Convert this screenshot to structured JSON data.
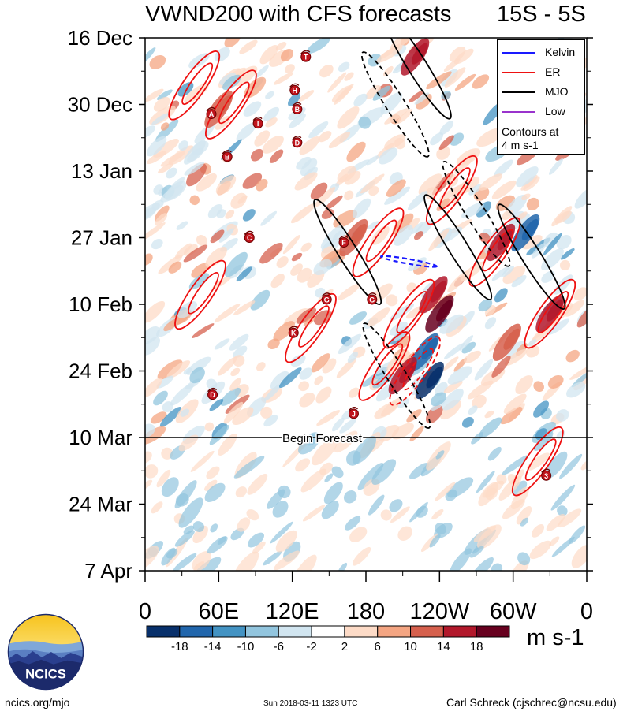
{
  "chart_data": {
    "type": "heatmap",
    "title": "VWND200 with CFS forecasts",
    "lat_band": "15S - 5S",
    "x_ticks": [
      {
        "lon": 0,
        "label": "0"
      },
      {
        "lon": 60,
        "label": "60E"
      },
      {
        "lon": 120,
        "label": "120E"
      },
      {
        "lon": 180,
        "label": "180"
      },
      {
        "lon": 240,
        "label": "120W"
      },
      {
        "lon": 300,
        "label": "60W"
      },
      {
        "lon": 360,
        "label": "0"
      }
    ],
    "x_range": [
      0,
      360
    ],
    "time_start": "2017-12-16",
    "time_end": "2018-04-07",
    "y_ticks": [
      {
        "date": "2017-12-16",
        "label": "16 Dec"
      },
      {
        "date": "2017-12-30",
        "label": "30 Dec"
      },
      {
        "date": "2018-01-13",
        "label": "13 Jan"
      },
      {
        "date": "2018-01-27",
        "label": "27 Jan"
      },
      {
        "date": "2018-02-10",
        "label": "10 Feb"
      },
      {
        "date": "2018-02-24",
        "label": "24 Feb"
      },
      {
        "date": "2018-03-10",
        "label": "10 Mar"
      },
      {
        "date": "2018-03-24",
        "label": "24 Mar"
      },
      {
        "date": "2018-04-07",
        "label": "7 Apr"
      }
    ],
    "forecast_start": {
      "date": "2018-03-10",
      "label": "Begin Forecast"
    },
    "legend": {
      "placement": "top-right",
      "entries": [
        {
          "name": "Kelvin",
          "color": "#1a1aff"
        },
        {
          "name": "ER",
          "color": "#ee1111"
        },
        {
          "name": "MJO",
          "color": "#000000"
        },
        {
          "name": "Low",
          "color": "#9933cc"
        }
      ],
      "note_lines": [
        "Contours at",
        "4 m s-1"
      ]
    },
    "colorbar": {
      "unit": "m s-1",
      "levels": [
        "-18",
        "-14",
        "-10",
        "-6",
        "-2",
        "2",
        "6",
        "10",
        "14",
        "18"
      ],
      "colors": [
        "#08306b",
        "#2166ac",
        "#4393c3",
        "#92c5de",
        "#d1e5f0",
        "#ffffff",
        "#fddbc7",
        "#f4a582",
        "#d6604d",
        "#b2182b",
        "#67001f"
      ]
    },
    "mjo_contours": [
      {
        "lon": 165,
        "date": "2018-01-30",
        "style": "solid"
      },
      {
        "lon": 222,
        "date": "2017-12-22",
        "style": "solid"
      },
      {
        "lon": 204,
        "date": "2017-12-30",
        "style": "dashed"
      },
      {
        "lon": 255,
        "date": "2018-01-29",
        "style": "solid"
      },
      {
        "lon": 270,
        "date": "2018-01-22",
        "style": "dashed"
      },
      {
        "lon": 315,
        "date": "2018-01-31",
        "style": "solid"
      },
      {
        "lon": 205,
        "date": "2018-02-25",
        "style": "dashed"
      }
    ],
    "er_contours": [
      {
        "lon": 70,
        "date": "2017-12-30",
        "style": "solid"
      },
      {
        "lon": 40,
        "date": "2017-12-26",
        "style": "solid"
      },
      {
        "lon": 190,
        "date": "2018-01-28",
        "style": "solid"
      },
      {
        "lon": 215,
        "date": "2018-02-12",
        "style": "solid"
      },
      {
        "lon": 195,
        "date": "2018-02-23",
        "style": "solid"
      },
      {
        "lon": 220,
        "date": "2018-02-24",
        "style": "dashed"
      },
      {
        "lon": 250,
        "date": "2018-01-17",
        "style": "solid"
      },
      {
        "lon": 285,
        "date": "2018-01-30",
        "style": "solid"
      },
      {
        "lon": 330,
        "date": "2018-02-12",
        "style": "solid"
      },
      {
        "lon": 320,
        "date": "2018-03-15",
        "style": "solid"
      },
      {
        "lon": 135,
        "date": "2018-02-15",
        "style": "solid"
      },
      {
        "lon": 45,
        "date": "2018-02-08",
        "style": "solid"
      }
    ],
    "kelvin_contours": [
      {
        "lon": 215,
        "date": "2018-02-01",
        "style": "dashed"
      }
    ],
    "storm_markers": [
      {
        "label": "T",
        "lon": 131,
        "date": "2017-12-20"
      },
      {
        "label": "H",
        "lon": 122,
        "date": "2017-12-27"
      },
      {
        "label": "A",
        "lon": 54,
        "date": "2018-01-01"
      },
      {
        "label": "B",
        "lon": 124,
        "date": "2017-12-31"
      },
      {
        "label": "I",
        "lon": 92,
        "date": "2018-01-03"
      },
      {
        "label": "D",
        "lon": 124,
        "date": "2018-01-07"
      },
      {
        "label": "B",
        "lon": 67,
        "date": "2018-01-10"
      },
      {
        "label": "C",
        "lon": 85,
        "date": "2018-01-27"
      },
      {
        "label": "F",
        "lon": 162,
        "date": "2018-01-28"
      },
      {
        "label": "G",
        "lon": 148,
        "date": "2018-02-09"
      },
      {
        "label": "G",
        "lon": 185,
        "date": "2018-02-09"
      },
      {
        "label": "K",
        "lon": 121,
        "date": "2018-02-16"
      },
      {
        "label": "D",
        "lon": 55,
        "date": "2018-03-01"
      },
      {
        "label": "J",
        "lon": 170,
        "date": "2018-03-05"
      },
      {
        "label": "3",
        "lon": 327,
        "date": "2018-03-18"
      }
    ]
  },
  "footer": {
    "url": "ncics.org/mjo",
    "timestamp": "Sun 2018-03-11 1323 UTC",
    "author": "Carl Schreck (cjschrec@ncsu.edu)"
  },
  "logo": {
    "text": "NCICS"
  }
}
